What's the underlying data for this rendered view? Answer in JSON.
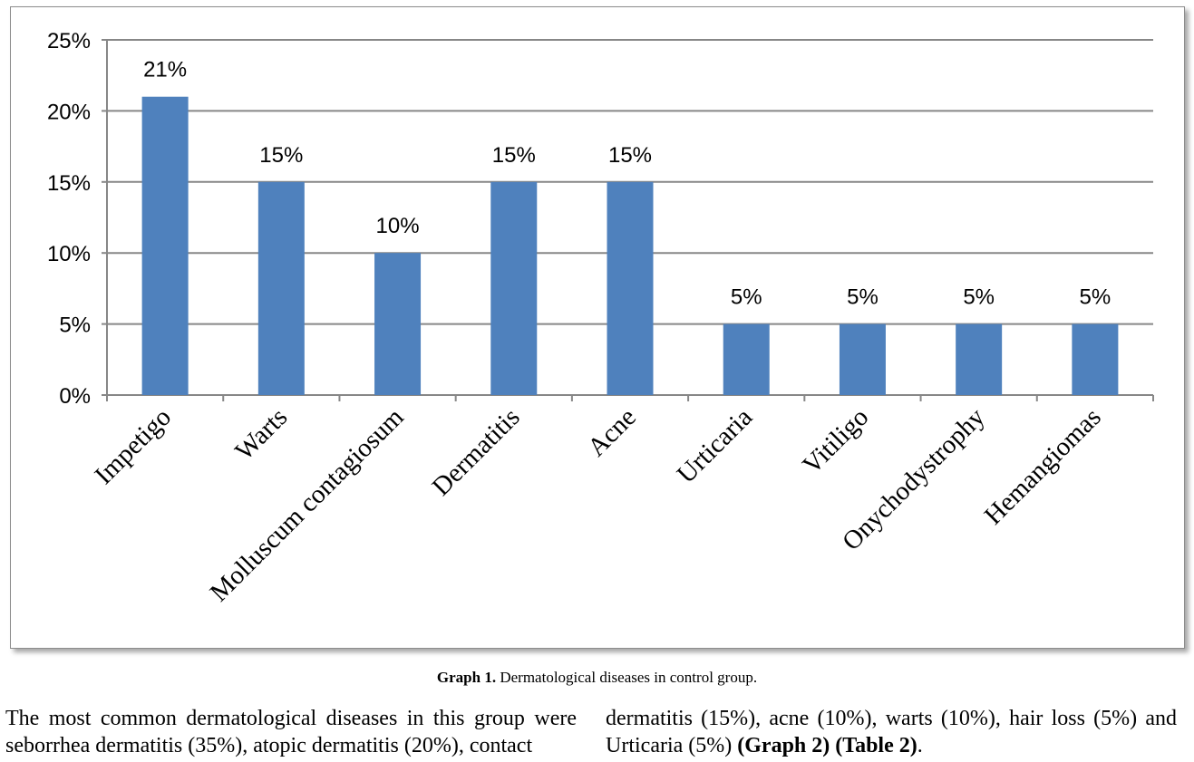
{
  "chart_data": {
    "type": "bar",
    "categories": [
      "Impetigo",
      "Warts",
      "Molluscum contagiosum",
      "Dermatitis",
      "Acne",
      "Urticaria",
      "Vitiligo",
      "Onychodystrophy",
      "Hemangiomas"
    ],
    "values": [
      21,
      15,
      10,
      15,
      15,
      5,
      5,
      5,
      5
    ],
    "data_labels": [
      "21%",
      "15%",
      "10%",
      "15%",
      "15%",
      "5%",
      "5%",
      "5%",
      "5%"
    ],
    "y_ticks": [
      "0%",
      "5%",
      "10%",
      "15%",
      "20%",
      "25%"
    ],
    "ylim": [
      0,
      25
    ],
    "grid": true,
    "bar_color": "#4f81bd",
    "grid_color": "#878787"
  },
  "caption": {
    "label": "Graph 1.",
    "text": " Dermatological diseases in control group."
  },
  "body_text": {
    "left": "The most common dermatological diseases in this group were seborrhea dermatitis (35%), atopic dermatitis (20%), contact",
    "right_plain": "dermatitis (15%), acne (10%), warts (10%), hair loss (5%) and Urticaria (5%) ",
    "right_bold": "(Graph 2) (Table 2)",
    "right_end": "."
  }
}
